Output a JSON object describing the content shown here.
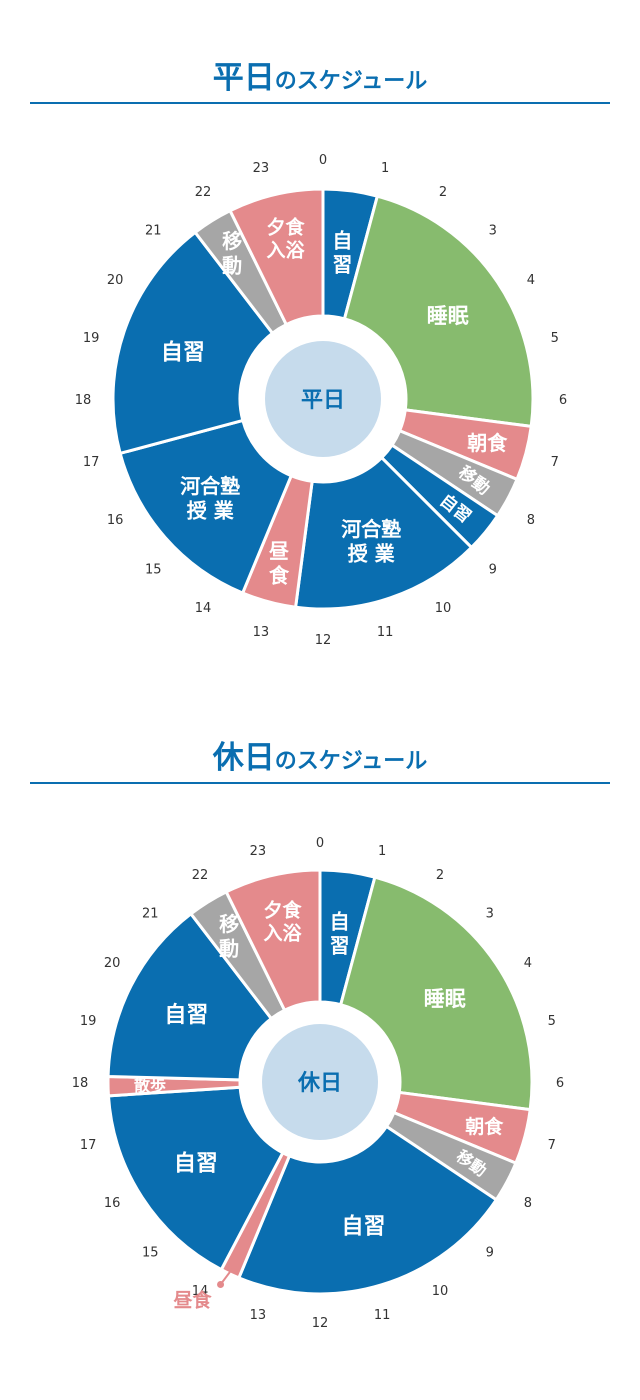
{
  "chart_data": [
    {
      "type": "pie",
      "title_main": "平日",
      "title_rest": "のスケジュール",
      "center_label": "平日",
      "hours": [
        "0",
        "1",
        "2",
        "3",
        "4",
        "5",
        "6",
        "7",
        "8",
        "9",
        "10",
        "11",
        "12",
        "13",
        "14",
        "15",
        "16",
        "17",
        "18",
        "19",
        "20",
        "21",
        "22",
        "23"
      ],
      "segments": [
        {
          "start": 0,
          "end": 1,
          "label": [
            "自",
            "習"
          ],
          "category": "study"
        },
        {
          "start": 1,
          "end": 6.5,
          "label": [
            "睡眠"
          ],
          "category": "sleep"
        },
        {
          "start": 6.5,
          "end": 7.5,
          "label": [
            "朝食"
          ],
          "category": "meal"
        },
        {
          "start": 7.5,
          "end": 8.25,
          "label": [
            "移動"
          ],
          "category": "move"
        },
        {
          "start": 8.25,
          "end": 9,
          "label": [
            "自習"
          ],
          "category": "study"
        },
        {
          "start": 9,
          "end": 12.5,
          "label": [
            "河合塾",
            "授 業"
          ],
          "category": "study"
        },
        {
          "start": 12.5,
          "end": 13.5,
          "label": [
            "昼",
            "食"
          ],
          "category": "meal"
        },
        {
          "start": 13.5,
          "end": 17,
          "label": [
            "河合塾",
            "授 業"
          ],
          "category": "study"
        },
        {
          "start": 17,
          "end": 21.5,
          "label": [
            "自習"
          ],
          "category": "study"
        },
        {
          "start": 21.5,
          "end": 22.25,
          "label": [
            "移",
            "動"
          ],
          "category": "move"
        },
        {
          "start": 22.25,
          "end": 24,
          "label": [
            "夕食",
            "入浴"
          ],
          "category": "meal"
        }
      ]
    },
    {
      "type": "pie",
      "title_main": "休日",
      "title_rest": "のスケジュール",
      "center_label": "休日",
      "hours": [
        "0",
        "1",
        "2",
        "3",
        "4",
        "5",
        "6",
        "7",
        "8",
        "9",
        "10",
        "11",
        "12",
        "13",
        "14",
        "15",
        "16",
        "17",
        "18",
        "19",
        "20",
        "21",
        "22",
        "23"
      ],
      "callout": "昼食",
      "segments": [
        {
          "start": 0,
          "end": 1,
          "label": [
            "自",
            "習"
          ],
          "category": "study"
        },
        {
          "start": 1,
          "end": 6.5,
          "label": [
            "睡眠"
          ],
          "category": "sleep"
        },
        {
          "start": 6.5,
          "end": 7.5,
          "label": [
            "朝食"
          ],
          "category": "meal"
        },
        {
          "start": 7.5,
          "end": 8.25,
          "label": [
            "移動"
          ],
          "category": "move"
        },
        {
          "start": 8.25,
          "end": 13.5,
          "label": [
            "自習"
          ],
          "category": "study"
        },
        {
          "start": 13.5,
          "end": 13.85,
          "label": [],
          "category": "meal"
        },
        {
          "start": 13.85,
          "end": 17.75,
          "label": [
            "自習"
          ],
          "category": "study"
        },
        {
          "start": 17.75,
          "end": 18.1,
          "label": [
            "散歩"
          ],
          "category": "meal"
        },
        {
          "start": 18.1,
          "end": 21.5,
          "label": [
            "自習"
          ],
          "category": "study"
        },
        {
          "start": 21.5,
          "end": 22.25,
          "label": [
            "移",
            "動"
          ],
          "category": "move"
        },
        {
          "start": 22.25,
          "end": 24,
          "label": [
            "夕食",
            "入浴"
          ],
          "category": "meal"
        }
      ]
    }
  ],
  "colors": {
    "study": "#0a6eb0",
    "sleep": "#87bb6e",
    "meal": "#e48a8c",
    "move": "#a6a6a6",
    "center": "#c6dbec",
    "title": "#0a6eb0"
  }
}
